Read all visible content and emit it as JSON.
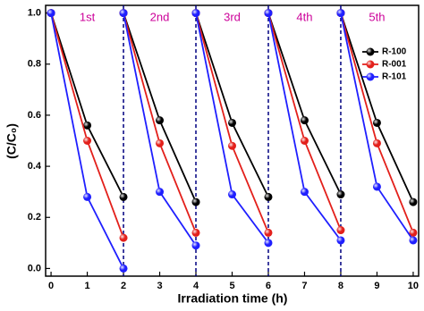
{
  "chart_data": {
    "type": "line",
    "x_label": "Irradiation time (h)",
    "y_label": "(C/C₀)",
    "x": [
      0,
      1,
      2,
      null,
      2,
      3,
      4,
      null,
      4,
      5,
      6,
      null,
      6,
      7,
      8,
      null,
      8,
      9,
      10
    ],
    "series": [
      {
        "name": "R-100",
        "color": "#000000",
        "values": [
          1.0,
          0.56,
          0.28,
          null,
          1.0,
          0.58,
          0.26,
          null,
          1.0,
          0.57,
          0.28,
          null,
          1.0,
          0.58,
          0.29,
          null,
          1.0,
          0.57,
          0.26
        ]
      },
      {
        "name": "R-001",
        "color": "#e3201b",
        "values": [
          1.0,
          0.5,
          0.12,
          null,
          1.0,
          0.49,
          0.14,
          null,
          1.0,
          0.48,
          0.14,
          null,
          1.0,
          0.5,
          0.15,
          null,
          1.0,
          0.49,
          0.14
        ]
      },
      {
        "name": "R-101",
        "color": "#1f1fff",
        "values": [
          1.0,
          0.28,
          0.0,
          null,
          1.0,
          0.3,
          0.09,
          null,
          1.0,
          0.29,
          0.1,
          null,
          1.0,
          0.3,
          0.11,
          null,
          1.0,
          0.32,
          0.11
        ]
      }
    ],
    "dividers": [
      2,
      4,
      6,
      8
    ],
    "cycle_labels": [
      "1st",
      "2nd",
      "3rd",
      "4th",
      "5th"
    ],
    "xlim": [
      -0.15,
      10.15
    ],
    "xticks": [
      0,
      1,
      2,
      3,
      4,
      5,
      6,
      7,
      8,
      9,
      10
    ],
    "ylim": [
      -0.03,
      1.03
    ],
    "yticks": [
      {
        "value": 0,
        "label": "0.0"
      },
      0.2,
      0.4,
      0.6,
      0.8,
      {
        "value": 1,
        "label": "1.0"
      }
    ],
    "legend": "right"
  }
}
